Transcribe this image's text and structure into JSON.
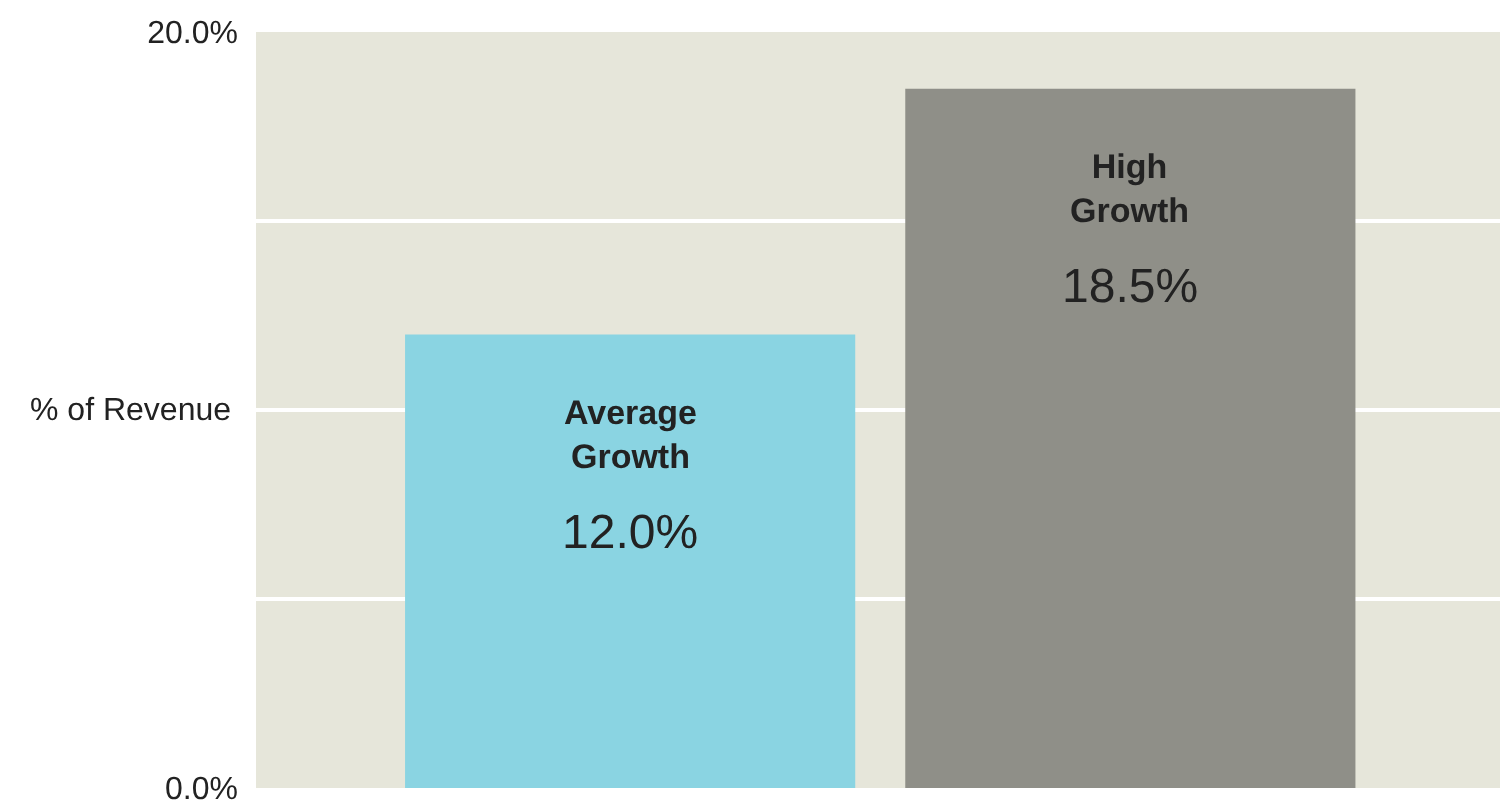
{
  "chart_data": {
    "type": "bar",
    "ylabel": "% of Revenue",
    "categories": [
      "Average Growth",
      "High Growth"
    ],
    "values": [
      12.0,
      18.5
    ],
    "colors": [
      "#8ad4e2",
      "#8f8f88"
    ],
    "value_labels": [
      "12.0%",
      "18.5%"
    ],
    "ylim": [
      0,
      20
    ],
    "yticks": [
      {
        "value": 0,
        "label": "0.0%"
      },
      {
        "value": 5,
        "label": null
      },
      {
        "value": 10,
        "label": null
      },
      {
        "value": 15,
        "label": null
      },
      {
        "value": 20,
        "label": "20.0%"
      }
    ],
    "grid": "y",
    "tick_labels": "y",
    "legend": false
  }
}
